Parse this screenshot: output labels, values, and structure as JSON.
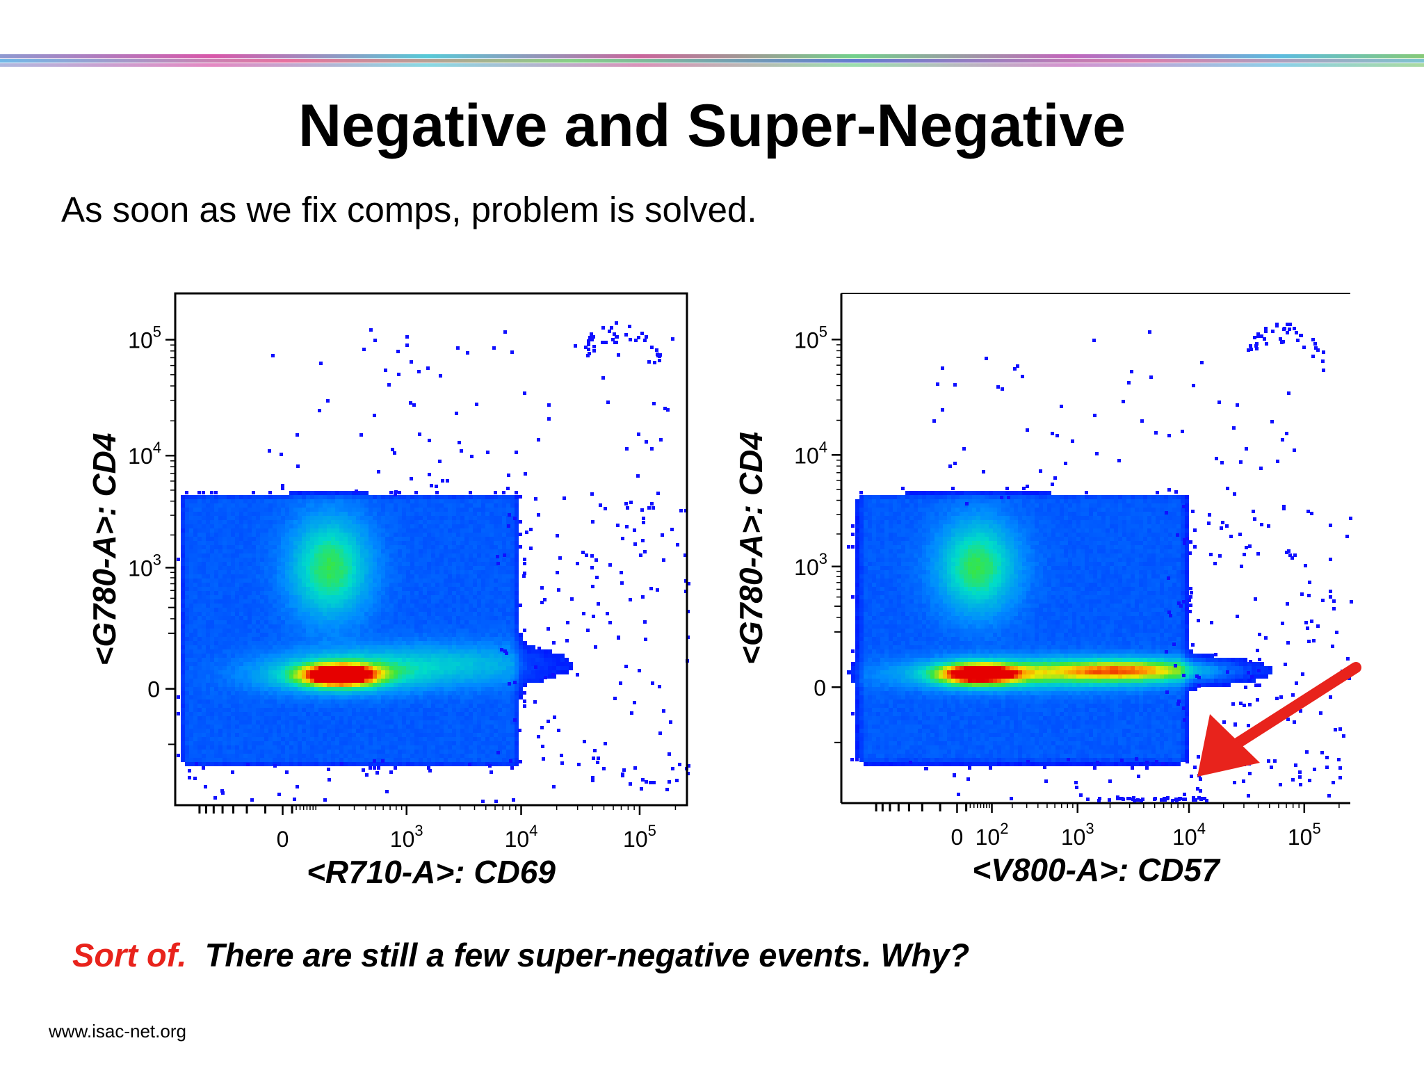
{
  "title": "Negative and Super-Negative",
  "subtitle": "As soon as we fix comps, problem is solved.",
  "footer": {
    "highlight": "Sort of.",
    "text": "There are still a few super-negative events.  Why?"
  },
  "url": "www.isac-net.org",
  "colors": {
    "highlight": "#e8231c",
    "sparse": "#1010ff",
    "arrow": "#e8231c"
  },
  "chart_data": [
    {
      "type": "scatter",
      "style": "density (pseudocolor)",
      "xlabel": "<R710-A>: CD69",
      "ylabel": "<G780-A>: CD4",
      "x_scale": "biexponential",
      "y_scale": "biexponential",
      "x_ticks": [
        {
          "value": 0,
          "base": "0",
          "exp": ""
        },
        {
          "value": 1000,
          "base": "10",
          "exp": "3"
        },
        {
          "value": 10000,
          "base": "10",
          "exp": "4"
        },
        {
          "value": 100000,
          "base": "10",
          "exp": "5"
        }
      ],
      "y_ticks": [
        {
          "value": 0,
          "base": "0",
          "exp": ""
        },
        {
          "value": 1000,
          "base": "10",
          "exp": "3"
        },
        {
          "value": 10000,
          "base": "10",
          "exp": "4"
        },
        {
          "value": 100000,
          "base": "10",
          "exp": "5"
        }
      ],
      "population_range": {
        "x": [
          -500,
          8000
        ],
        "y": [
          -300,
          4000
        ]
      },
      "dense_clusters": [
        {
          "x": 200,
          "y": 30,
          "density": "highest"
        },
        {
          "x": 150,
          "y": 1000,
          "density": "medium"
        }
      ],
      "sparse_tail": "events scattered up to x≈2e5, y≈1.5e5; few super-negative events"
    },
    {
      "type": "scatter",
      "style": "density (pseudocolor)",
      "xlabel": "<V800-A>: CD57",
      "ylabel": "<G780-A>: CD4",
      "x_scale": "biexponential",
      "y_scale": "biexponential",
      "x_ticks": [
        {
          "value": 0,
          "base": "0",
          "exp": ""
        },
        {
          "value": 100,
          "base": "10",
          "exp": "2"
        },
        {
          "value": 1000,
          "base": "10",
          "exp": "3"
        },
        {
          "value": 10000,
          "base": "10",
          "exp": "4"
        },
        {
          "value": 100000,
          "base": "10",
          "exp": "5"
        }
      ],
      "y_ticks": [
        {
          "value": 0,
          "base": "0",
          "exp": ""
        },
        {
          "value": 1000,
          "base": "10",
          "exp": "3"
        },
        {
          "value": 10000,
          "base": "10",
          "exp": "4"
        },
        {
          "value": 100000,
          "base": "10",
          "exp": "5"
        }
      ],
      "population_range": {
        "x": [
          -500,
          8000
        ],
        "y": [
          -300,
          4000
        ]
      },
      "dense_clusters": [
        {
          "x": 50,
          "y": 30,
          "density": "highest"
        },
        {
          "x": 50,
          "y": 1000,
          "density": "medium"
        },
        {
          "x": 3000,
          "y": 40,
          "density": "medium"
        }
      ],
      "sparse_tail": "events scattered up to x≈2e5, y≈1.5e5; super-negative events near x≈1e4",
      "annotation": {
        "type": "arrow",
        "points_to": {
          "x": 10000,
          "y": "super-negative"
        }
      }
    }
  ]
}
